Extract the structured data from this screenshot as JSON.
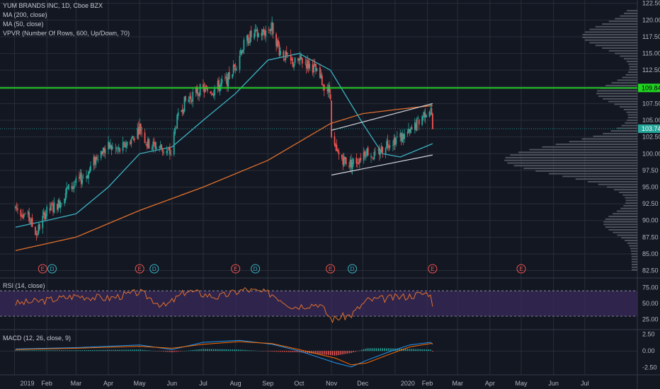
{
  "legend": {
    "title": "YUM BRANDS INC, 1D, Cboe BZX",
    "ma200": "MA (200, close)",
    "ma50": "MA (50, close)",
    "vpvr": "VPVR (Number Of Rows, 600, Up/Down, 70)",
    "rsi": "RSI (14, close)",
    "macd": "MACD (12, 26, close, 9)"
  },
  "colors": {
    "background": "#131722",
    "grid": "#2a2e39",
    "up": "#26a69a",
    "down": "#ef5350",
    "ma200": "#e0702d",
    "ma50": "#3bb3c3",
    "resistance": "#21d321",
    "channel": "#d1d4dc",
    "rsi_line": "#e0702d",
    "rsi_band": "#3a2a5a",
    "macd_line": "#2196f3",
    "signal_line": "#ff6d00",
    "vpvr": "#6b6f78"
  },
  "chart_data": {
    "type": "candlestick",
    "price_axis": {
      "ticks": [
        "122.50",
        "120.00",
        "117.50",
        "115.00",
        "112.50",
        "110.00",
        "107.50",
        "105.00",
        "102.50",
        "100.00",
        "97.50",
        "95.00",
        "92.50",
        "90.00",
        "87.50",
        "85.00",
        "82.50"
      ],
      "ylim": [
        81.5,
        123
      ],
      "resistance_label": "109.84",
      "last_price_label": "103.74",
      "resistance": 109.84,
      "last_price": 103.74
    },
    "x_ticks": [
      "2019",
      "Feb",
      "Mar",
      "Apr",
      "May",
      "Jun",
      "Jul",
      "Aug",
      "Sep",
      "Oct",
      "Nov",
      "Dec",
      "2020",
      "Feb",
      "Mar",
      "Apr",
      "May",
      "Jun",
      "Jul"
    ],
    "price_path": [
      [
        "2019-01-02",
        92.0
      ],
      [
        "2019-01-14",
        90.5
      ],
      [
        "2019-01-22",
        88.0
      ],
      [
        "2019-01-30",
        91.0
      ],
      [
        "2019-02-12",
        92.5
      ],
      [
        "2019-02-20",
        94.5
      ],
      [
        "2019-03-01",
        95.5
      ],
      [
        "2019-03-12",
        97.0
      ],
      [
        "2019-03-22",
        100.0
      ],
      [
        "2019-04-01",
        101.0
      ],
      [
        "2019-04-12",
        100.5
      ],
      [
        "2019-04-25",
        102.5
      ],
      [
        "2019-05-01",
        104.0
      ],
      [
        "2019-05-08",
        101.5
      ],
      [
        "2019-05-20",
        101.0
      ],
      [
        "2019-05-31",
        100.0
      ],
      [
        "2019-06-05",
        104.5
      ],
      [
        "2019-06-12",
        107.5
      ],
      [
        "2019-06-26",
        109.5
      ],
      [
        "2019-07-10",
        109.5
      ],
      [
        "2019-07-24",
        111.0
      ],
      [
        "2019-08-02",
        113.5
      ],
      [
        "2019-08-06",
        115.5
      ],
      [
        "2019-08-14",
        117.5
      ],
      [
        "2019-08-26",
        118.0
      ],
      [
        "2019-09-05",
        119.0
      ],
      [
        "2019-09-12",
        115.5
      ],
      [
        "2019-09-24",
        113.5
      ],
      [
        "2019-10-03",
        114.0
      ],
      [
        "2019-10-14",
        113.0
      ],
      [
        "2019-10-24",
        110.5
      ],
      [
        "2019-10-31",
        109.0
      ],
      [
        "2019-11-01",
        102.0
      ],
      [
        "2019-11-06",
        100.0
      ],
      [
        "2019-11-18",
        98.5
      ],
      [
        "2019-11-26",
        99.0
      ],
      [
        "2019-12-04",
        100.5
      ],
      [
        "2019-12-13",
        99.5
      ],
      [
        "2019-12-23",
        101.5
      ],
      [
        "2020-01-06",
        102.5
      ],
      [
        "2020-01-15",
        103.0
      ],
      [
        "2020-01-22",
        104.5
      ],
      [
        "2020-01-29",
        106.0
      ],
      [
        "2020-02-04",
        107.0
      ],
      [
        "2020-02-06",
        103.74
      ]
    ],
    "ma200_path": [
      [
        "2019-01-02",
        85.5
      ],
      [
        "2019-03-01",
        87.5
      ],
      [
        "2019-05-01",
        91.5
      ],
      [
        "2019-07-01",
        95.0
      ],
      [
        "2019-09-01",
        99.0
      ],
      [
        "2019-10-31",
        104.5
      ],
      [
        "2019-12-01",
        106.0
      ],
      [
        "2020-01-02",
        106.6
      ],
      [
        "2020-02-06",
        107.2
      ]
    ],
    "ma50_path": [
      [
        "2019-01-02",
        89.0
      ],
      [
        "2019-02-01",
        90.0
      ],
      [
        "2019-03-01",
        91.0
      ],
      [
        "2019-04-01",
        95.0
      ],
      [
        "2019-05-01",
        100.0
      ],
      [
        "2019-06-01",
        101.0
      ],
      [
        "2019-07-01",
        105.0
      ],
      [
        "2019-08-01",
        109.0
      ],
      [
        "2019-09-01",
        114.0
      ],
      [
        "2019-10-01",
        115.0
      ],
      [
        "2019-10-31",
        112.5
      ],
      [
        "2019-12-01",
        104.5
      ],
      [
        "2019-12-20",
        100.0
      ],
      [
        "2020-01-06",
        99.5
      ],
      [
        "2020-02-06",
        101.5
      ]
    ],
    "channel_upper": [
      [
        "2019-11-01",
        103.5
      ],
      [
        "2020-02-06",
        107.5
      ]
    ],
    "channel_lower": [
      [
        "2019-11-01",
        96.8
      ],
      [
        "2020-02-06",
        99.8
      ]
    ],
    "earnings_markers": [
      {
        "date": "2019-01-28",
        "label": "E"
      },
      {
        "date": "2019-02-06",
        "label": "D"
      },
      {
        "date": "2019-05-01",
        "label": "E"
      },
      {
        "date": "2019-05-15",
        "label": "D"
      },
      {
        "date": "2019-08-01",
        "label": "E"
      },
      {
        "date": "2019-08-20",
        "label": "D"
      },
      {
        "date": "2019-10-31",
        "label": "E"
      },
      {
        "date": "2019-11-21",
        "label": "D"
      },
      {
        "date": "2020-02-06",
        "label": "E"
      },
      {
        "date": "2020-05-01",
        "label": "E"
      }
    ],
    "rsi": {
      "ticks": [
        "75.00",
        "50.00",
        "25.00"
      ],
      "ylim": [
        10,
        88
      ],
      "upper": 70,
      "lower": 30,
      "path": [
        [
          "2019-01-02",
          50
        ],
        [
          "2019-02-01",
          55
        ],
        [
          "2019-03-01",
          62
        ],
        [
          "2019-04-01",
          58
        ],
        [
          "2019-05-01",
          68
        ],
        [
          "2019-05-25",
          45
        ],
        [
          "2019-06-15",
          70
        ],
        [
          "2019-07-15",
          60
        ],
        [
          "2019-08-10",
          72
        ],
        [
          "2019-09-05",
          65
        ],
        [
          "2019-09-25",
          45
        ],
        [
          "2019-10-20",
          50
        ],
        [
          "2019-11-01",
          25
        ],
        [
          "2019-11-20",
          32
        ],
        [
          "2019-12-05",
          55
        ],
        [
          "2019-12-25",
          58
        ],
        [
          "2020-01-15",
          62
        ],
        [
          "2020-02-03",
          67
        ],
        [
          "2020-02-06",
          50
        ]
      ]
    },
    "macd": {
      "ticks": [
        "2.50",
        "0.00",
        "-2.50"
      ],
      "ylim": [
        -3.6,
        3.0
      ],
      "macd_path": [
        [
          "2019-01-02",
          0.3
        ],
        [
          "2019-03-01",
          0.5
        ],
        [
          "2019-05-01",
          0.9
        ],
        [
          "2019-06-01",
          0.2
        ],
        [
          "2019-07-01",
          1.3
        ],
        [
          "2019-08-05",
          1.6
        ],
        [
          "2019-09-05",
          1.0
        ],
        [
          "2019-10-01",
          0.0
        ],
        [
          "2019-11-05",
          -1.8
        ],
        [
          "2019-11-20",
          -2.4
        ],
        [
          "2019-12-05",
          -1.4
        ],
        [
          "2019-12-25",
          -0.2
        ],
        [
          "2020-01-15",
          0.9
        ],
        [
          "2020-02-04",
          1.3
        ],
        [
          "2020-02-06",
          1.0
        ]
      ],
      "signal_path": [
        [
          "2019-01-02",
          0.2
        ],
        [
          "2019-03-01",
          0.4
        ],
        [
          "2019-05-01",
          0.7
        ],
        [
          "2019-06-01",
          0.4
        ],
        [
          "2019-07-01",
          1.0
        ],
        [
          "2019-08-05",
          1.4
        ],
        [
          "2019-09-05",
          1.1
        ],
        [
          "2019-10-01",
          0.2
        ],
        [
          "2019-11-05",
          -1.1
        ],
        [
          "2019-11-20",
          -2.1
        ],
        [
          "2019-12-05",
          -1.8
        ],
        [
          "2019-12-25",
          -0.6
        ],
        [
          "2020-01-15",
          0.6
        ],
        [
          "2020-02-04",
          1.1
        ],
        [
          "2020-02-06",
          1.1
        ]
      ]
    }
  }
}
